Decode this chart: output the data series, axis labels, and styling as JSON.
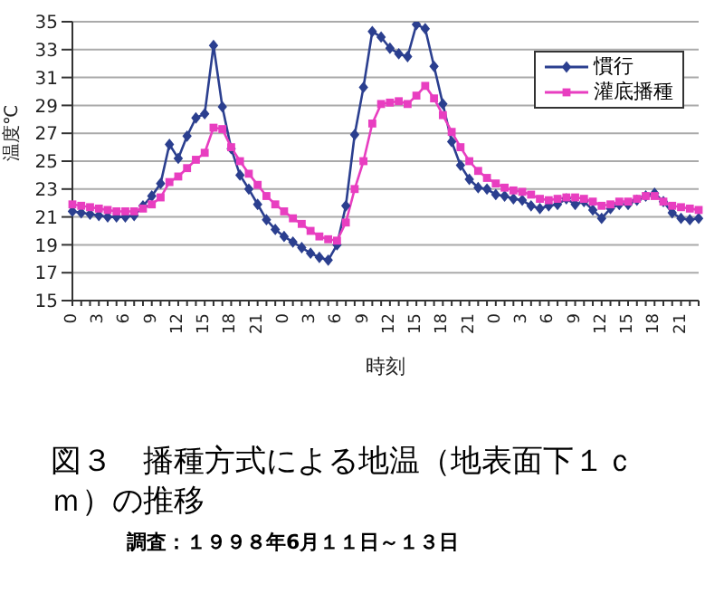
{
  "chart_data": {
    "type": "line",
    "title": "図３　播種方式による地温（地表面下１ｃｍ）の推移",
    "annotations": [
      "調査：１９９８年6月１１日～１３日"
    ],
    "xlabel": "時刻",
    "ylabel": "温度℃",
    "categories": [
      "0",
      null,
      null,
      "3",
      null,
      null,
      "6",
      null,
      null,
      "9",
      null,
      null,
      "12",
      null,
      null,
      "15",
      null,
      null,
      "18",
      null,
      null,
      "21",
      null,
      null,
      "0",
      null,
      null,
      "3",
      null,
      null,
      "6",
      null,
      null,
      "9",
      null,
      null,
      "12",
      null,
      null,
      "15",
      null,
      null,
      "18",
      null,
      null,
      "21",
      null,
      null,
      "0",
      null,
      null,
      "3",
      null,
      null,
      "6",
      null,
      null,
      "9",
      null,
      null,
      "12",
      null,
      null,
      "15",
      null,
      null,
      "18",
      null,
      null,
      "21",
      null,
      null
    ],
    "series": [
      {
        "name": "慣行",
        "color": "#2b3f8f",
        "marker": "diamond",
        "values": [
          21.4,
          21.3,
          21.2,
          21.1,
          21.0,
          21.0,
          21.0,
          21.1,
          21.8,
          22.5,
          23.4,
          26.2,
          25.2,
          26.8,
          28.1,
          28.4,
          33.3,
          28.9,
          25.9,
          24.0,
          23.0,
          21.9,
          20.8,
          20.1,
          19.6,
          19.2,
          18.8,
          18.4,
          18.1,
          17.9,
          19.0,
          21.8,
          26.9,
          30.3,
          34.3,
          33.9,
          33.1,
          32.7,
          32.5,
          34.8,
          34.5,
          31.8,
          29.1,
          26.4,
          24.7,
          23.7,
          23.1,
          23.0,
          22.6,
          22.5,
          22.3,
          22.2,
          21.8,
          21.6,
          21.8,
          21.9,
          22.3,
          21.9,
          22.1,
          21.5,
          20.9,
          21.6,
          21.9,
          21.9,
          22.2,
          22.5,
          22.7,
          22.1,
          21.3,
          20.9,
          20.8,
          20.9
        ]
      },
      {
        "name": "灌底播種",
        "color": "#e83ec0",
        "marker": "square",
        "values": [
          21.9,
          21.8,
          21.7,
          21.6,
          21.5,
          21.4,
          21.4,
          21.4,
          21.6,
          21.9,
          22.4,
          23.5,
          23.9,
          24.5,
          25.1,
          25.6,
          27.4,
          27.3,
          26.0,
          25.0,
          24.1,
          23.3,
          22.5,
          21.9,
          21.4,
          20.9,
          20.5,
          20.0,
          19.6,
          19.4,
          19.3,
          20.6,
          23.0,
          25.0,
          27.7,
          29.1,
          29.2,
          29.3,
          29.1,
          29.7,
          30.4,
          29.5,
          28.3,
          27.1,
          26.0,
          25.0,
          24.3,
          23.8,
          23.4,
          23.1,
          22.9,
          22.8,
          22.6,
          22.3,
          22.2,
          22.3,
          22.4,
          22.4,
          22.3,
          22.1,
          21.8,
          21.9,
          22.1,
          22.1,
          22.3,
          22.5,
          22.5,
          22.1,
          21.8,
          21.7,
          21.6,
          21.5
        ]
      }
    ],
    "ylim": [
      15,
      35
    ],
    "yticks": [
      15,
      17,
      19,
      21,
      23,
      25,
      27,
      29,
      31,
      33,
      35
    ],
    "grid": "y",
    "legend": "top right",
    "line_style": "solid"
  }
}
